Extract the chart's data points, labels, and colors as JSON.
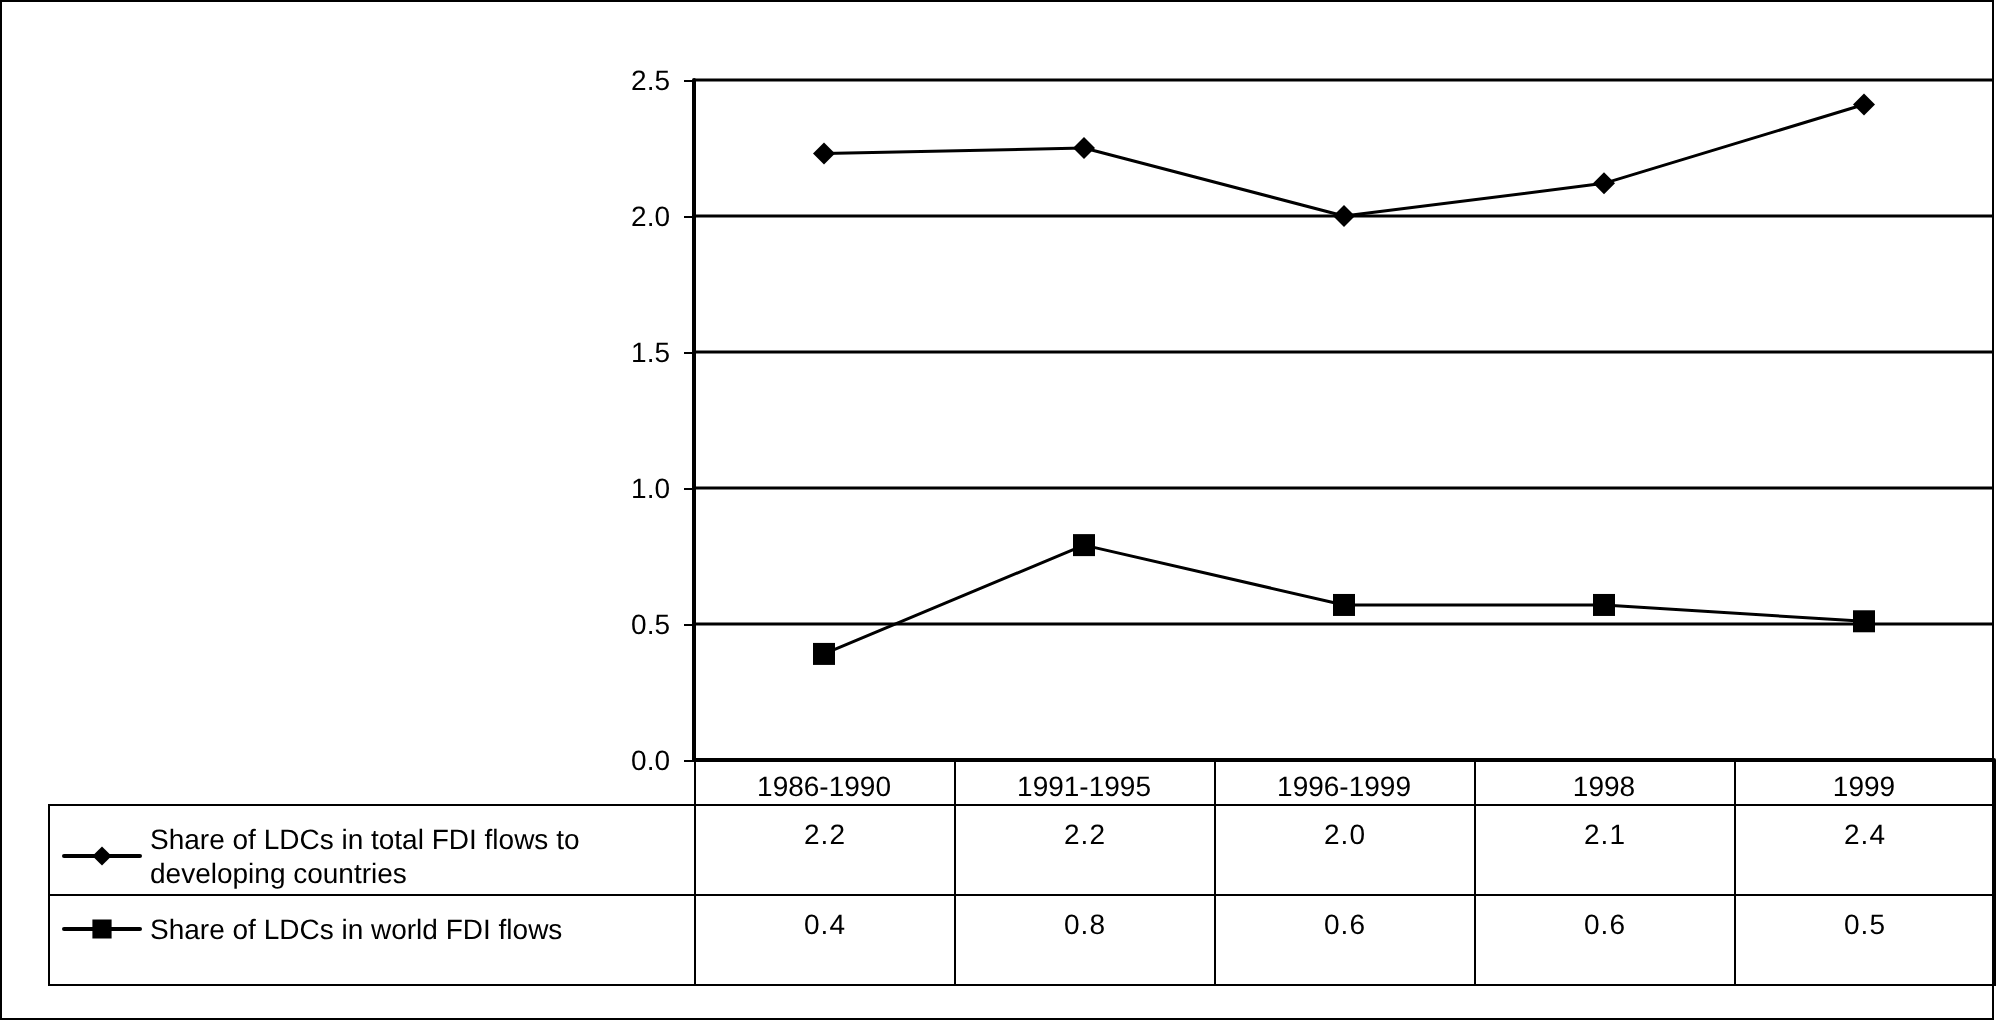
{
  "chart_data": {
    "type": "line",
    "categories": [
      "1986-1990",
      "1991-1995",
      "1996-1999",
      "1998",
      "1999"
    ],
    "series": [
      {
        "name": "Share of LDCs in total FDI flows to developing countries",
        "color": "#000000",
        "marker": "diamond",
        "values": [
          2.23,
          2.25,
          2.0,
          2.12,
          2.41
        ],
        "value_labels": [
          "2.2",
          "2.2",
          "2.0",
          "2.1",
          "2.4"
        ]
      },
      {
        "name": "Share of LDCs in world FDI flows",
        "color": "#000000",
        "marker": "square",
        "values": [
          0.39,
          0.79,
          0.57,
          0.57,
          0.51
        ],
        "value_labels": [
          "0.4",
          "0.8",
          "0.6",
          "0.6",
          "0.5"
        ]
      }
    ],
    "ylim": [
      0,
      2.5
    ],
    "yticks": [
      {
        "value": 0,
        "label": "0.0"
      },
      0.5,
      {
        "value": 1,
        "label": "1.0"
      },
      1.5,
      {
        "value": 2,
        "label": "2.0"
      },
      2.5
    ],
    "grid": "y",
    "legend": "bottom left",
    "line_style": "solid"
  }
}
